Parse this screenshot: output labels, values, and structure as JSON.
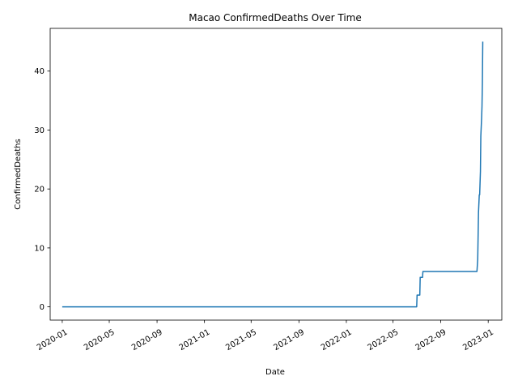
{
  "chart_data": {
    "type": "line",
    "title": "Macao  ConfirmedDeaths Over Time",
    "xlabel": "Date",
    "ylabel": "ConfirmedDeaths",
    "x_ticks": [
      "2020-01",
      "2020-05",
      "2020-09",
      "2021-01",
      "2021-05",
      "2021-09",
      "2022-01",
      "2022-05",
      "2022-09",
      "2023-01"
    ],
    "y_ticks": [
      "0",
      "10",
      "20",
      "30",
      "40"
    ],
    "xlim": [
      "2019-12-01",
      "2023-02-05"
    ],
    "ylim": [
      -2.25,
      47.25
    ],
    "grid": false,
    "series": [
      {
        "color": "#1f77b4",
        "points": [
          [
            "2020-01-01",
            0
          ],
          [
            "2022-07-01",
            0
          ],
          [
            "2022-07-02",
            2
          ],
          [
            "2022-07-09",
            2
          ],
          [
            "2022-07-10",
            5
          ],
          [
            "2022-07-16",
            5
          ],
          [
            "2022-07-17",
            6
          ],
          [
            "2022-12-03",
            6
          ],
          [
            "2022-12-05",
            8
          ],
          [
            "2022-12-07",
            16
          ],
          [
            "2022-12-09",
            19
          ],
          [
            "2022-12-10",
            19
          ],
          [
            "2022-12-12",
            23
          ],
          [
            "2022-12-13",
            29
          ],
          [
            "2022-12-15",
            32
          ],
          [
            "2022-12-16",
            34
          ],
          [
            "2022-12-17",
            38
          ],
          [
            "2022-12-18",
            45
          ]
        ]
      }
    ]
  }
}
